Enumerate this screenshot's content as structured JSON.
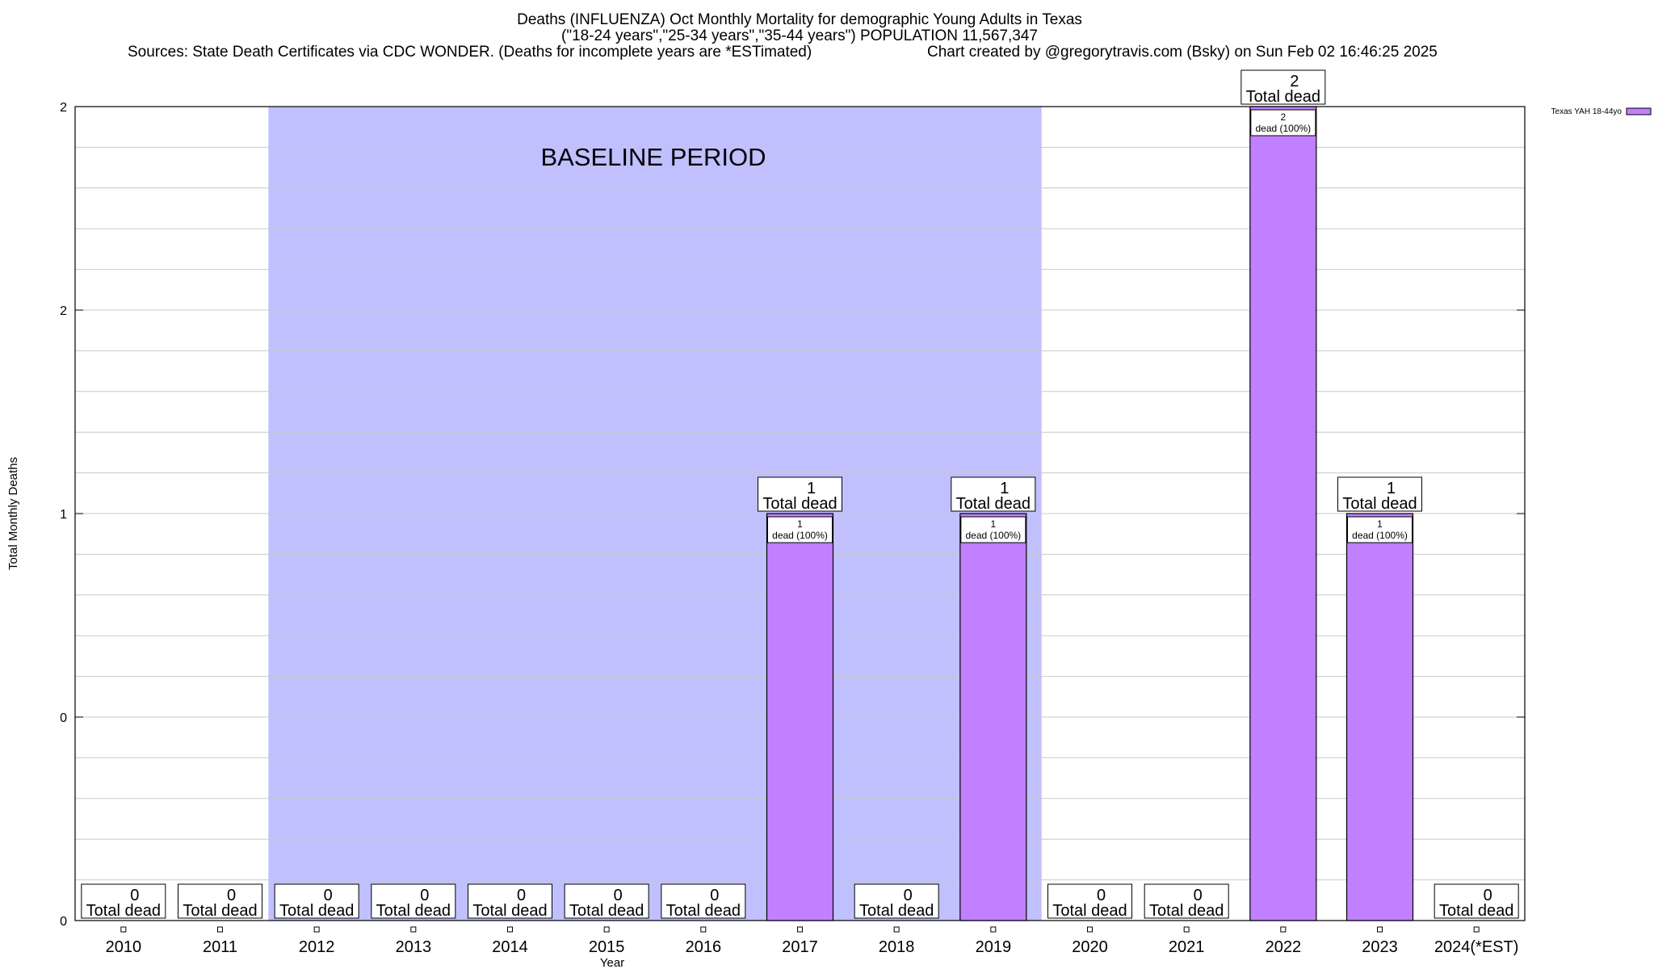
{
  "chart_data": {
    "type": "bar",
    "title": "Deaths (INFLUENZA) Oct Monthly Mortality for demographic Young Adults in Texas",
    "subtitle": "(\"18-24 years\",\"25-34 years\",\"35-44 years\") POPULATION 11,567,347",
    "sources": "Sources: State Death Certificates via CDC WONDER. (Deaths for incomplete years are *ESTimated)",
    "credit": "Chart created by @gregorytravis.com (Bsky) on Sun Feb 02 16:46:25 2025",
    "xlabel": "Year",
    "ylabel": "Total Monthly Deaths",
    "categories": [
      "2010",
      "2011",
      "2012",
      "2013",
      "2014",
      "2015",
      "2016",
      "2017",
      "2018",
      "2019",
      "2020",
      "2021",
      "2022",
      "2023",
      "2024(*EST)"
    ],
    "series": [
      {
        "name": "Texas YAH 18-44yo",
        "color": "#c080ff",
        "values": [
          0,
          0,
          0,
          0,
          0,
          0,
          0,
          1,
          0,
          1,
          0,
          0,
          2,
          1,
          0
        ]
      }
    ],
    "ylim": [
      0,
      2
    ],
    "ytick_labels": [
      "0",
      "0",
      "1",
      "2",
      "2"
    ],
    "total_label": "Total dead",
    "segment_label": "dead (100%)",
    "baseline": {
      "label": "BASELINE PERIOD",
      "start": "2012",
      "end": "2019",
      "color": "#c0c0ff"
    },
    "grid": true,
    "legend_position": "top-right"
  }
}
